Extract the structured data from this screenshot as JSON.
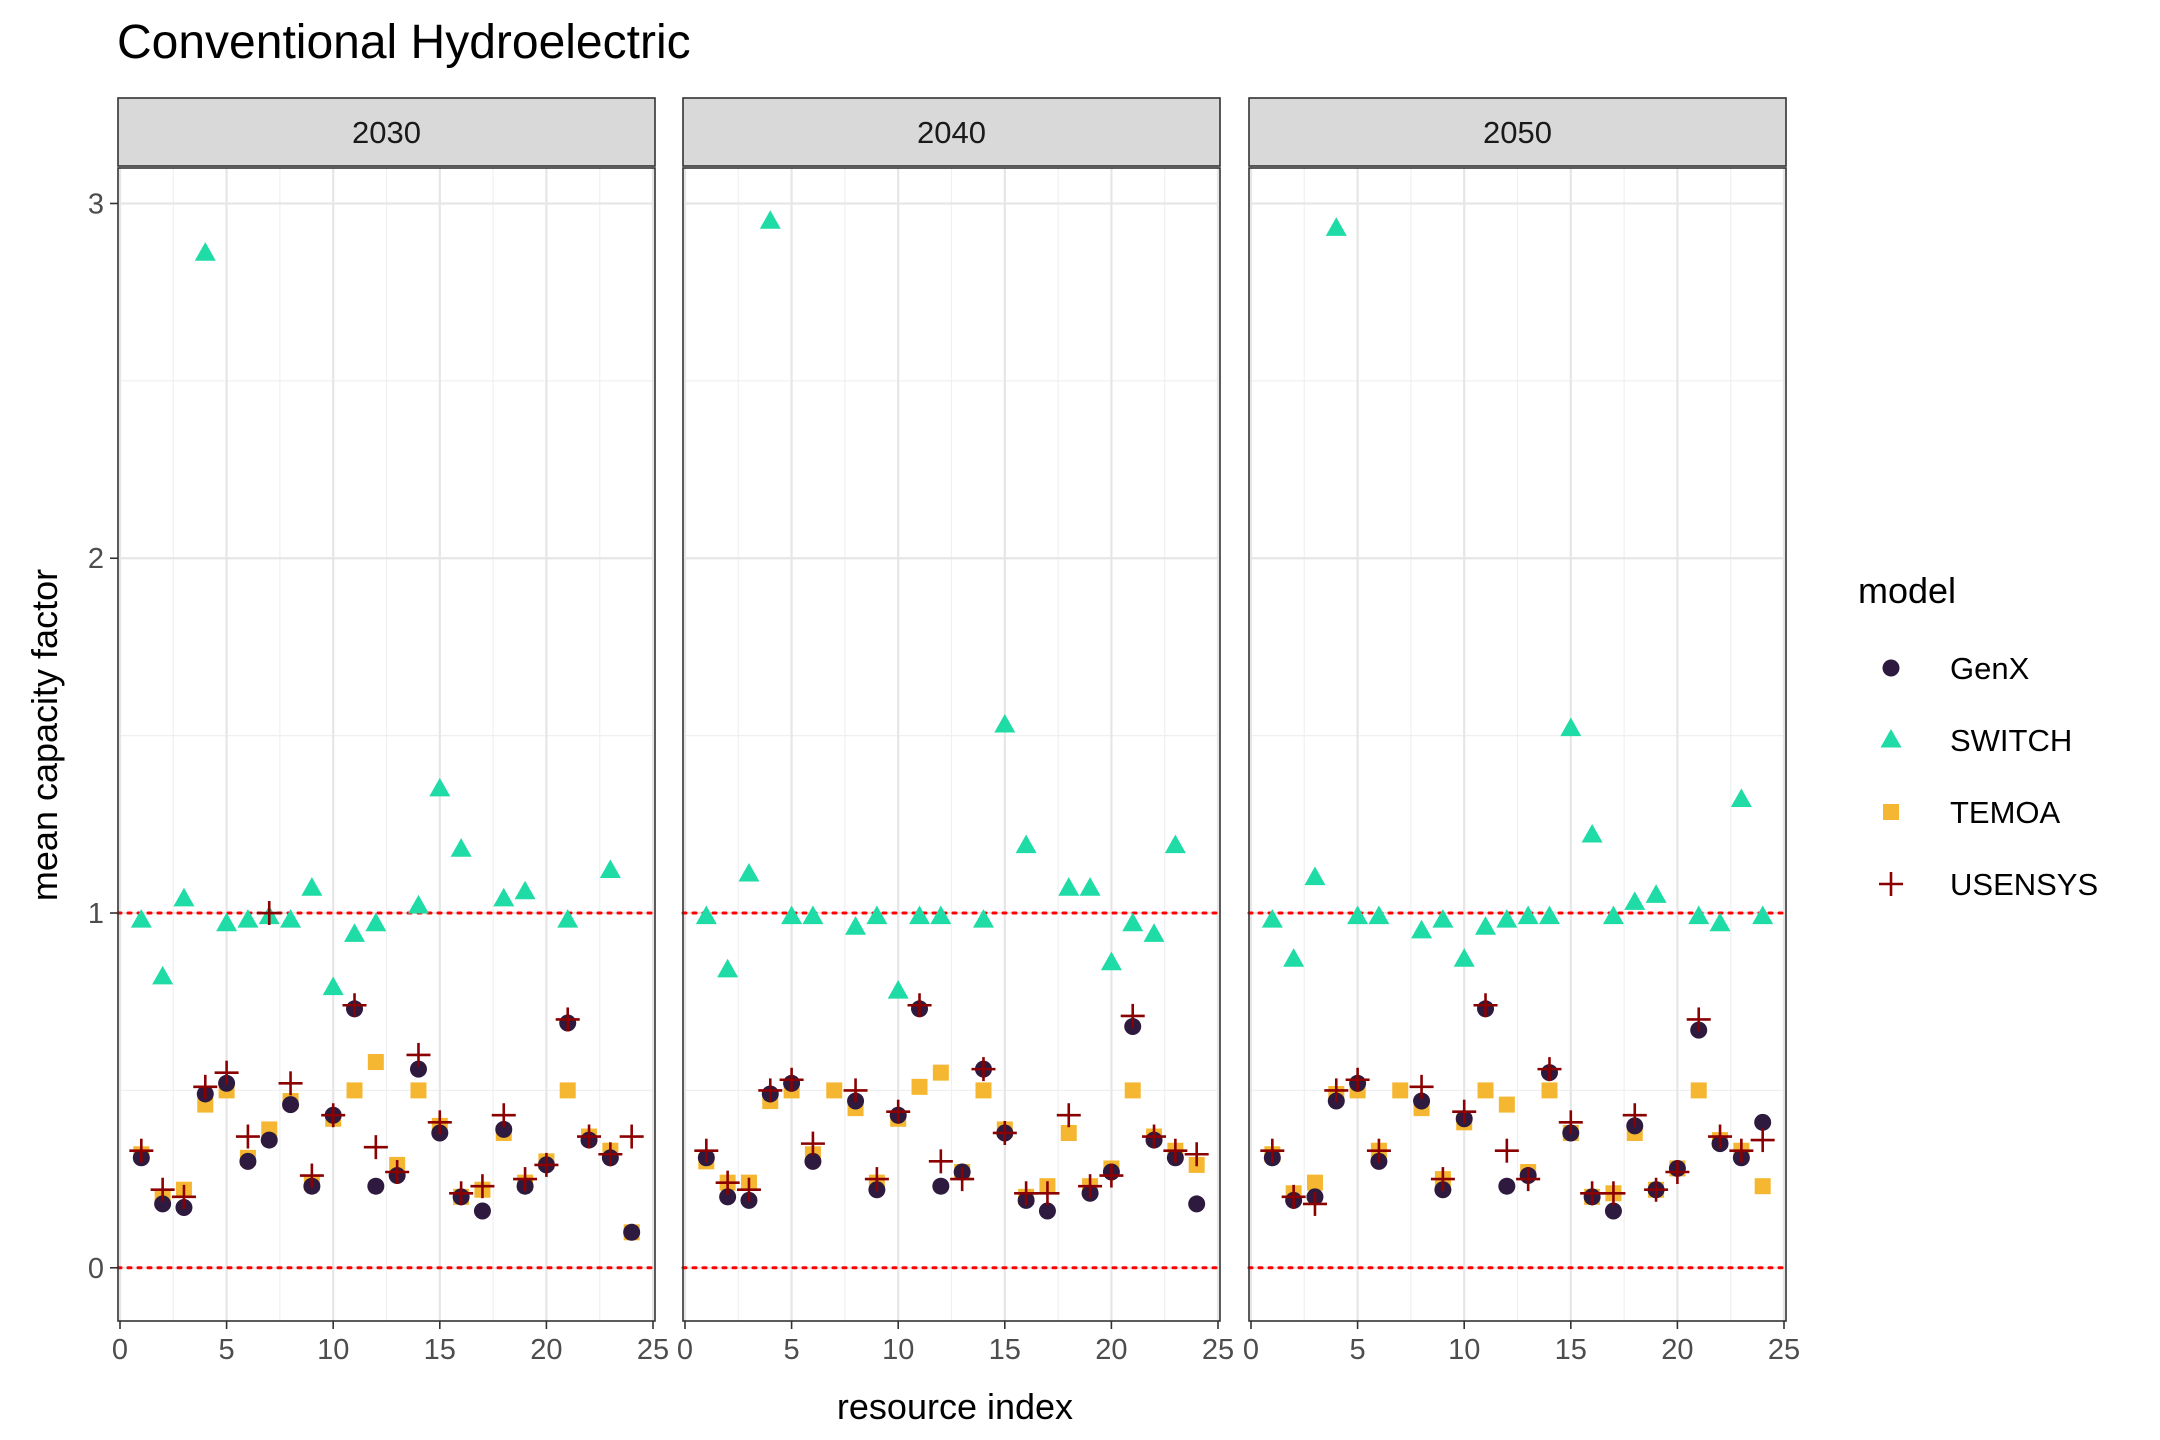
{
  "chart_data": {
    "type": "scatter",
    "title": "Conventional Hydroelectric",
    "xlabel": "resource index",
    "ylabel": "mean capacity factor",
    "xlim": [
      0,
      25
    ],
    "ylim": [
      -0.15,
      3.1
    ],
    "x_ticks": [
      0,
      5,
      10,
      15,
      20,
      25
    ],
    "y_ticks": [
      0,
      1,
      2,
      3
    ],
    "reference_lines": [
      0,
      1
    ],
    "reference_line_color": "#ff0000",
    "grid": true,
    "legend_title": "model",
    "legend_position": "right",
    "facets": [
      {
        "label": "2030",
        "series": [
          {
            "name": "GenX",
            "color": "#2d1a3e",
            "shape": "circle",
            "x": [
              1,
              2,
              3,
              4,
              5,
              6,
              7,
              8,
              9,
              10,
              11,
              12,
              13,
              14,
              15,
              16,
              17,
              18,
              19,
              20,
              21,
              22,
              23,
              24
            ],
            "y": [
              0.31,
              0.18,
              0.17,
              0.49,
              0.52,
              0.3,
              0.36,
              0.46,
              0.23,
              0.43,
              0.73,
              0.23,
              0.26,
              0.56,
              0.38,
              0.2,
              0.16,
              0.39,
              0.23,
              0.29,
              0.69,
              0.36,
              0.31,
              0.1
            ]
          },
          {
            "name": "SWITCH",
            "color": "#1fdba6",
            "shape": "triangle",
            "x": [
              1,
              2,
              3,
              4,
              5,
              6,
              7,
              8,
              9,
              10,
              11,
              12,
              14,
              15,
              16,
              18,
              19,
              21,
              23
            ],
            "y": [
              0.98,
              0.82,
              1.04,
              2.86,
              0.97,
              0.98,
              0.99,
              0.98,
              1.07,
              0.79,
              0.94,
              0.97,
              1.02,
              1.35,
              1.18,
              1.04,
              1.06,
              0.98,
              1.12
            ]
          },
          {
            "name": "TEMOA",
            "color": "#f5b731",
            "shape": "square",
            "x": [
              1,
              2,
              3,
              4,
              5,
              6,
              7,
              8,
              9,
              10,
              11,
              12,
              13,
              14,
              15,
              16,
              17,
              18,
              19,
              20,
              21,
              22,
              23,
              24
            ],
            "y": [
              0.32,
              0.2,
              0.22,
              0.46,
              0.5,
              0.31,
              0.39,
              0.47,
              0.24,
              0.42,
              0.5,
              0.58,
              0.29,
              0.5,
              0.4,
              0.2,
              0.22,
              0.38,
              0.24,
              0.3,
              0.5,
              0.37,
              0.33,
              0.1
            ]
          },
          {
            "name": "USENSYS",
            "color": "#8b0000",
            "shape": "plus",
            "x": [
              1,
              2,
              3,
              4,
              5,
              6,
              7,
              8,
              9,
              10,
              11,
              12,
              13,
              14,
              15,
              16,
              17,
              18,
              19,
              20,
              21,
              22,
              23,
              24
            ],
            "y": [
              0.33,
              0.22,
              0.2,
              0.51,
              0.55,
              0.37,
              1.0,
              0.52,
              0.26,
              0.43,
              0.74,
              0.34,
              0.27,
              0.6,
              0.41,
              0.21,
              0.23,
              0.43,
              0.25,
              0.29,
              0.7,
              0.37,
              0.32,
              0.37
            ]
          }
        ]
      },
      {
        "label": "2040",
        "series": [
          {
            "name": "GenX",
            "color": "#2d1a3e",
            "shape": "circle",
            "x": [
              1,
              2,
              3,
              4,
              5,
              6,
              8,
              9,
              10,
              11,
              12,
              13,
              14,
              15,
              16,
              17,
              19,
              20,
              21,
              22,
              23,
              24
            ],
            "y": [
              0.31,
              0.2,
              0.19,
              0.49,
              0.52,
              0.3,
              0.47,
              0.22,
              0.43,
              0.73,
              0.23,
              0.27,
              0.56,
              0.38,
              0.19,
              0.16,
              0.21,
              0.27,
              0.68,
              0.36,
              0.31,
              0.18
            ]
          },
          {
            "name": "SWITCH",
            "color": "#1fdba6",
            "shape": "triangle",
            "x": [
              1,
              2,
              3,
              4,
              5,
              6,
              8,
              9,
              10,
              11,
              12,
              14,
              15,
              16,
              18,
              19,
              20,
              21,
              22,
              23
            ],
            "y": [
              0.99,
              0.84,
              1.11,
              2.95,
              0.99,
              0.99,
              0.96,
              0.99,
              0.78,
              0.99,
              0.99,
              0.98,
              1.53,
              1.19,
              1.07,
              1.07,
              0.86,
              0.97,
              0.94,
              1.19
            ]
          },
          {
            "name": "TEMOA",
            "color": "#f5b731",
            "shape": "square",
            "x": [
              1,
              2,
              3,
              4,
              5,
              6,
              7,
              8,
              9,
              10,
              11,
              12,
              13,
              14,
              15,
              16,
              17,
              18,
              19,
              20,
              21,
              22,
              23,
              24
            ],
            "y": [
              0.3,
              0.24,
              0.24,
              0.47,
              0.5,
              0.32,
              0.5,
              0.45,
              0.24,
              0.42,
              0.51,
              0.55,
              0.27,
              0.5,
              0.39,
              0.2,
              0.23,
              0.38,
              0.23,
              0.28,
              0.5,
              0.37,
              0.33,
              0.29
            ]
          },
          {
            "name": "USENSYS",
            "color": "#8b0000",
            "shape": "plus",
            "x": [
              1,
              2,
              3,
              4,
              5,
              6,
              8,
              9,
              10,
              11,
              12,
              13,
              14,
              15,
              16,
              17,
              18,
              19,
              20,
              21,
              22,
              23,
              24
            ],
            "y": [
              0.33,
              0.24,
              0.22,
              0.5,
              0.53,
              0.35,
              0.5,
              0.25,
              0.44,
              0.74,
              0.3,
              0.25,
              0.56,
              0.38,
              0.21,
              0.21,
              0.43,
              0.23,
              0.26,
              0.71,
              0.37,
              0.33,
              0.32
            ]
          }
        ]
      },
      {
        "label": "2050",
        "series": [
          {
            "name": "GenX",
            "color": "#2d1a3e",
            "shape": "circle",
            "x": [
              1,
              2,
              3,
              4,
              5,
              6,
              8,
              9,
              10,
              11,
              12,
              13,
              14,
              15,
              16,
              17,
              18,
              19,
              20,
              21,
              22,
              23,
              24
            ],
            "y": [
              0.31,
              0.19,
              0.2,
              0.47,
              0.52,
              0.3,
              0.47,
              0.22,
              0.42,
              0.73,
              0.23,
              0.26,
              0.55,
              0.38,
              0.2,
              0.16,
              0.4,
              0.22,
              0.28,
              0.67,
              0.35,
              0.31,
              0.41
            ]
          },
          {
            "name": "SWITCH",
            "color": "#1fdba6",
            "shape": "triangle",
            "x": [
              1,
              2,
              3,
              4,
              5,
              6,
              8,
              9,
              10,
              11,
              12,
              13,
              14,
              15,
              16,
              17,
              18,
              19,
              21,
              22,
              23,
              24
            ],
            "y": [
              0.98,
              0.87,
              1.1,
              2.93,
              0.99,
              0.99,
              0.95,
              0.98,
              0.87,
              0.96,
              0.98,
              0.99,
              0.99,
              1.52,
              1.22,
              0.99,
              1.03,
              1.05,
              0.99,
              0.97,
              1.32,
              0.99
            ]
          },
          {
            "name": "TEMOA",
            "color": "#f5b731",
            "shape": "square",
            "x": [
              1,
              2,
              3,
              4,
              5,
              6,
              7,
              8,
              9,
              10,
              11,
              12,
              13,
              14,
              15,
              16,
              17,
              18,
              19,
              20,
              21,
              22,
              23,
              24
            ],
            "y": [
              0.32,
              0.21,
              0.24,
              0.49,
              0.5,
              0.33,
              0.5,
              0.45,
              0.25,
              0.41,
              0.5,
              0.46,
              0.27,
              0.5,
              0.38,
              0.2,
              0.21,
              0.38,
              0.22,
              0.28,
              0.5,
              0.36,
              0.33,
              0.23
            ]
          },
          {
            "name": "USENSYS",
            "color": "#8b0000",
            "shape": "plus",
            "x": [
              1,
              2,
              3,
              4,
              5,
              6,
              8,
              9,
              10,
              11,
              12,
              13,
              14,
              15,
              16,
              17,
              18,
              19,
              20,
              21,
              22,
              23,
              24
            ],
            "y": [
              0.33,
              0.2,
              0.18,
              0.5,
              0.53,
              0.33,
              0.51,
              0.25,
              0.44,
              0.74,
              0.33,
              0.25,
              0.56,
              0.41,
              0.21,
              0.21,
              0.43,
              0.22,
              0.27,
              0.7,
              0.37,
              0.33,
              0.36
            ]
          }
        ]
      }
    ]
  }
}
